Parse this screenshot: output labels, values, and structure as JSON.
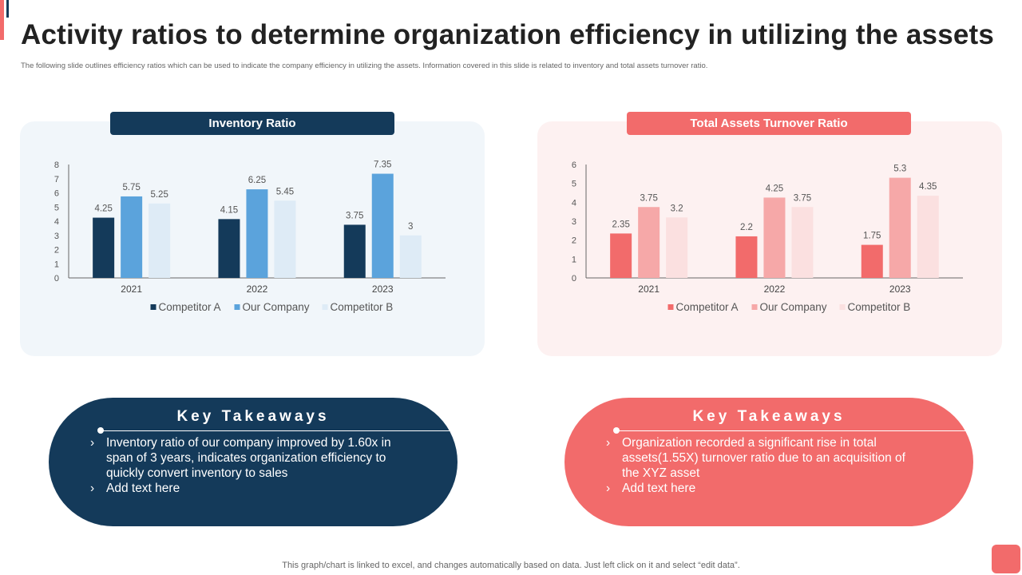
{
  "header": {
    "title": "Activity ratios to determine organization efficiency in utilizing the assets",
    "subtitle": "The following slide outlines efficiency ratios which can be used to indicate the company efficiency in utilizing the assets. Information covered in this slide is related to inventory and total assets turnover ratio."
  },
  "colors": {
    "navy": "#143a5a",
    "coral": "#f26b6b"
  },
  "chart_data": [
    {
      "type": "bar",
      "title": "Inventory Ratio",
      "categories": [
        "2021",
        "2022",
        "2023"
      ],
      "series": [
        {
          "name": "Competitor A",
          "values": [
            4.25,
            4.15,
            3.75
          ],
          "color": "#143a5a"
        },
        {
          "name": "Our Company",
          "values": [
            5.75,
            6.25,
            7.35
          ],
          "color": "#5ba3dc"
        },
        {
          "name": "Competitor B",
          "values": [
            5.25,
            5.45,
            3
          ],
          "color": "#deebf6"
        }
      ],
      "yticks": [
        0,
        1,
        2,
        3,
        4,
        5,
        6,
        7,
        8
      ],
      "ylim": [
        0,
        8
      ],
      "xlabel": "",
      "ylabel": "",
      "legend": "bottom"
    },
    {
      "type": "bar",
      "title": "Total Assets  Turnover Ratio",
      "categories": [
        "2021",
        "2022",
        "2023"
      ],
      "series": [
        {
          "name": "Competitor A",
          "values": [
            2.35,
            2.2,
            1.75
          ],
          "color": "#f26b6b"
        },
        {
          "name": "Our Company",
          "values": [
            3.75,
            4.25,
            5.3
          ],
          "color": "#f6a8a8"
        },
        {
          "name": "Competitor B",
          "values": [
            3.2,
            3.75,
            4.35
          ],
          "color": "#fbe0e0"
        }
      ],
      "yticks": [
        0,
        1,
        2,
        3,
        4,
        5,
        6
      ],
      "ylim": [
        0,
        6
      ],
      "xlabel": "",
      "ylabel": "",
      "legend": "bottom"
    }
  ],
  "takeaways": {
    "left": {
      "title": "Key Takeaways",
      "items": [
        "Inventory  ratio of our company improved by 1.60x in span of 3 years, indicates organization efficiency to quickly convert inventory  to sales",
        "Add text here"
      ]
    },
    "right": {
      "title": "Key Takeaways",
      "items": [
        "Organization recorded a significant rise in total assets(1.55X) turnover  ratio due to an acquisition of the XYZ asset",
        "Add text here"
      ]
    },
    "bullet_icon": "chevron-right-icon",
    "bullet_glyph": "›"
  },
  "footer": {
    "note": "This graph/chart is linked to excel,  and changes automatically based on data. Just left click on it and select “edit data”."
  }
}
